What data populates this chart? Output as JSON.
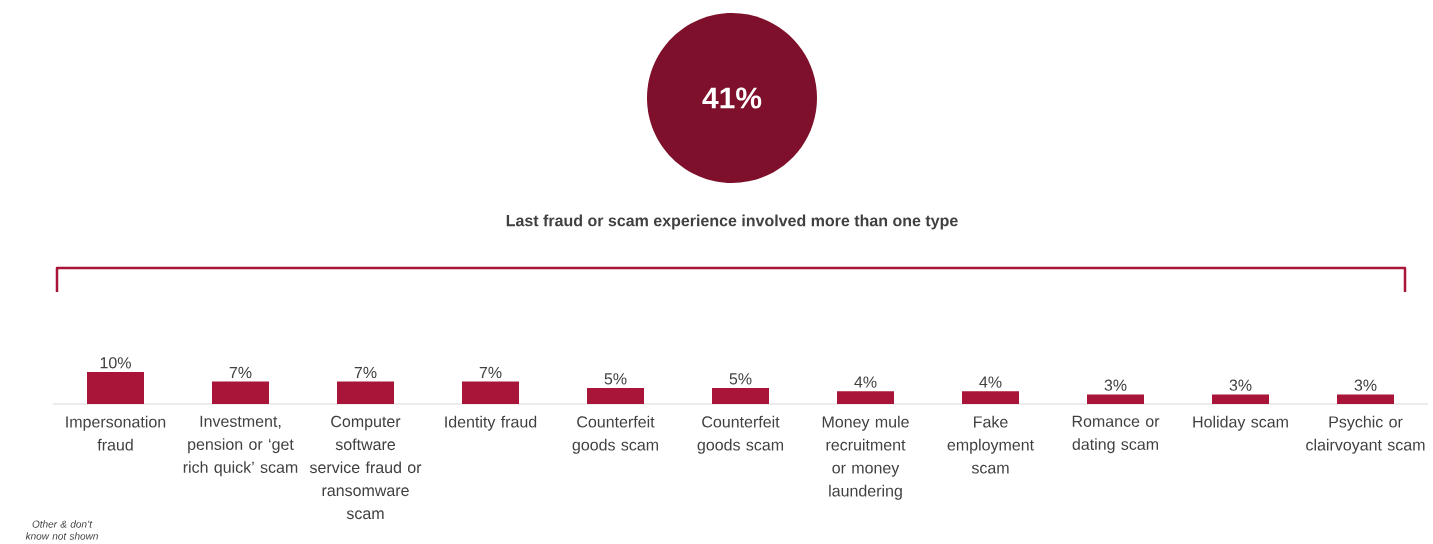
{
  "chart_data": {
    "type": "bar",
    "title": "Last fraud or scam experience involved more than one type",
    "categories": [
      "Impersonation fraud",
      "Investment, pension or ‘get rich quick’ scam",
      "Computer software service fraud or ransomware scam",
      "Identity fraud",
      "Counterfeit goods scam",
      "Counterfeit goods scam",
      "Money mule recruitment or money laundering",
      "Fake employment scam",
      "Romance or dating scam",
      "Holiday scam",
      "Psychic or clairvoyant scam"
    ],
    "values": [
      10,
      7,
      7,
      7,
      5,
      5,
      4,
      4,
      3,
      3,
      3
    ],
    "value_labels": [
      "10%",
      "7%",
      "7%",
      "7%",
      "5%",
      "5%",
      "4%",
      "4%",
      "3%",
      "3%",
      "3%"
    ],
    "color": "#a91539",
    "annotations": [
      "41%",
      "Other & don’t know not shown"
    ]
  }
}
